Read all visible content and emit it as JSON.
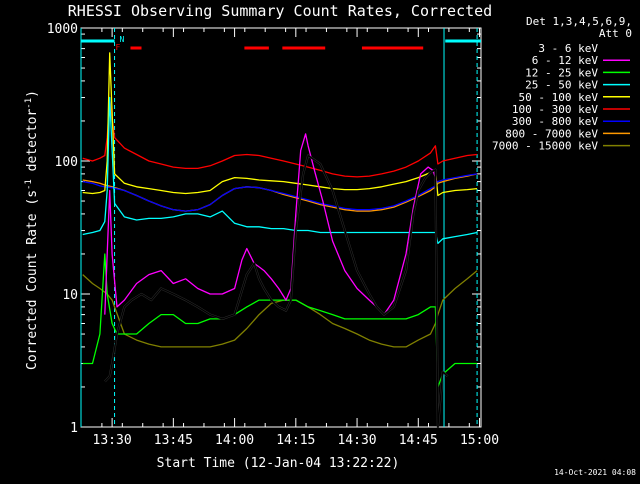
{
  "chart_data": {
    "type": "line",
    "title": "RHESSI Observing Summary Count Rates, Corrected",
    "xlabel": "Start Time (12-Jan-04 13:22:22)",
    "ylabel": "Corrected Count Rate (s⁻¹ detector⁻¹)",
    "ylabel_main": "Corrected Count Rate (s",
    "ylabel_sup1": "-1",
    "ylabel_mid": " detector",
    "ylabel_sup2": "-1",
    "ylabel_end": ")",
    "xlim": [
      13.373,
      15.006
    ],
    "ylim": [
      1,
      1000
    ],
    "yscale": "log",
    "x_ticks": [
      {
        "value": 13.5,
        "label": "13:30"
      },
      {
        "value": 13.75,
        "label": "13:45"
      },
      {
        "value": 14.0,
        "label": "14:00"
      },
      {
        "value": 14.25,
        "label": "14:15"
      },
      {
        "value": 14.5,
        "label": "14:30"
      },
      {
        "value": 14.75,
        "label": "14:45"
      },
      {
        "value": 15.0,
        "label": "15:00"
      }
    ],
    "y_ticks": [
      {
        "value": 1,
        "label": "1"
      },
      {
        "value": 10,
        "label": "10"
      },
      {
        "value": 100,
        "label": "100"
      },
      {
        "value": 1000,
        "label": "1000"
      }
    ],
    "legend_header": [
      "Det 1,3,4,5,6,9,",
      "Att 0"
    ],
    "legend_position": "right",
    "series": [
      {
        "name": "3 - 6 keV",
        "color": "#000000",
        "x": [
          13.47,
          13.49,
          13.5,
          13.52,
          13.55,
          13.58,
          13.62,
          13.66,
          13.7,
          13.75,
          13.8,
          13.85,
          13.9,
          13.95,
          14.0,
          14.05,
          14.08,
          14.1,
          14.12,
          14.15,
          14.18,
          14.21,
          14.23,
          14.25,
          14.28,
          14.3,
          14.35,
          14.4,
          14.45,
          14.5,
          14.55,
          14.58,
          14.61,
          14.65,
          14.7,
          14.73,
          14.75,
          14.78,
          14.8,
          14.82,
          14.83,
          14.85,
          14.87
        ],
        "y": [
          2.2,
          2.4,
          3,
          5,
          8,
          9,
          10,
          9,
          11,
          10,
          9,
          8,
          7,
          6.5,
          7,
          14,
          17,
          13,
          11,
          9,
          8,
          7.5,
          9,
          30,
          80,
          110,
          95,
          60,
          30,
          15,
          10,
          8,
          7,
          8,
          15,
          40,
          60,
          75,
          82,
          86,
          1,
          2.6,
          2.4
        ]
      },
      {
        "name": "6 - 12 keV",
        "color": "#ff00ff",
        "x": [
          13.47,
          13.49,
          13.5,
          13.52,
          13.55,
          13.6,
          13.65,
          13.7,
          13.75,
          13.8,
          13.85,
          13.9,
          13.95,
          14.0,
          14.03,
          14.05,
          14.08,
          14.1,
          14.12,
          14.15,
          14.18,
          14.21,
          14.23,
          14.25,
          14.27,
          14.29,
          14.3,
          14.33,
          14.36,
          14.4,
          14.45,
          14.5,
          14.55,
          14.58,
          14.61,
          14.65,
          14.7,
          14.73,
          14.76,
          14.79,
          14.81,
          14.825
        ],
        "y": [
          7,
          60,
          20,
          8,
          9,
          12,
          14,
          15,
          12,
          13,
          11,
          10,
          10,
          11,
          18,
          22,
          17,
          16,
          15,
          13,
          11,
          9,
          11,
          40,
          120,
          160,
          130,
          80,
          50,
          25,
          15,
          11,
          9,
          8,
          7,
          9,
          20,
          45,
          80,
          90,
          85,
          70
        ]
      },
      {
        "name": "12 - 25 keV",
        "color": "#00ff00",
        "x": [
          13.38,
          13.42,
          13.45,
          13.47,
          13.48,
          13.5,
          13.52,
          13.55,
          13.6,
          13.65,
          13.7,
          13.75,
          13.8,
          13.85,
          13.9,
          13.95,
          14.0,
          14.05,
          14.1,
          14.15,
          14.2,
          14.25,
          14.3,
          14.35,
          14.4,
          14.45,
          14.5,
          14.55,
          14.6,
          14.65,
          14.7,
          14.75,
          14.8,
          14.82,
          14.83,
          14.85,
          14.9,
          14.95,
          14.99
        ],
        "y": [
          3,
          3,
          5,
          20,
          10,
          6,
          5,
          5,
          5,
          6,
          7,
          7,
          6,
          6,
          6.5,
          6.5,
          7,
          8,
          9,
          9,
          9,
          9,
          8,
          7.5,
          7,
          6.5,
          6.5,
          6.5,
          6.5,
          6.5,
          6.5,
          7,
          8,
          8,
          2,
          2.5,
          3,
          3,
          3
        ]
      },
      {
        "name": "25 - 50 keV",
        "color": "#00ffff",
        "x": [
          13.38,
          13.42,
          13.45,
          13.47,
          13.48,
          13.49,
          13.51,
          13.55,
          13.6,
          13.65,
          13.7,
          13.75,
          13.8,
          13.85,
          13.9,
          13.95,
          14.0,
          14.05,
          14.1,
          14.15,
          14.2,
          14.25,
          14.3,
          14.35,
          14.4,
          14.45,
          14.5,
          14.55,
          14.6,
          14.65,
          14.7,
          14.75,
          14.8,
          14.82,
          14.83,
          14.85,
          14.9,
          14.95,
          14.99
        ],
        "y": [
          28,
          29,
          30,
          35,
          60,
          300,
          48,
          38,
          36,
          37,
          37,
          38,
          40,
          40,
          38,
          42,
          34,
          32,
          32,
          31,
          31,
          30,
          30,
          29,
          29,
          29,
          29,
          29,
          29,
          29,
          29,
          29,
          29,
          29,
          24,
          26,
          27,
          28,
          29
        ]
      },
      {
        "name": "50 - 100 keV",
        "color": "#ffff00",
        "x": [
          13.38,
          13.42,
          13.45,
          13.47,
          13.48,
          13.49,
          13.51,
          13.55,
          13.6,
          13.65,
          13.7,
          13.75,
          13.8,
          13.85,
          13.9,
          13.95,
          14.0,
          14.05,
          14.1,
          14.15,
          14.2,
          14.25,
          14.3,
          14.35,
          14.4,
          14.45,
          14.5,
          14.55,
          14.6,
          14.65,
          14.7,
          14.75,
          14.8,
          14.82,
          14.83,
          14.85,
          14.9,
          14.95,
          14.99
        ],
        "y": [
          58,
          57,
          58,
          60,
          100,
          650,
          80,
          68,
          64,
          62,
          60,
          58,
          57,
          58,
          60,
          70,
          75,
          74,
          72,
          71,
          70,
          68,
          66,
          64,
          62,
          61,
          61,
          62,
          64,
          67,
          70,
          75,
          82,
          85,
          55,
          58,
          60,
          61,
          62
        ]
      },
      {
        "name": "100 - 300 keV",
        "color": "#ff0000",
        "x": [
          13.38,
          13.42,
          13.45,
          13.47,
          13.48,
          13.49,
          13.51,
          13.55,
          13.6,
          13.65,
          13.7,
          13.75,
          13.8,
          13.85,
          13.9,
          13.95,
          14.0,
          14.05,
          14.1,
          14.15,
          14.2,
          14.25,
          14.3,
          14.35,
          14.4,
          14.45,
          14.5,
          14.55,
          14.6,
          14.65,
          14.7,
          14.75,
          14.8,
          14.82,
          14.83,
          14.85,
          14.9,
          14.95,
          14.99
        ],
        "y": [
          105,
          100,
          105,
          110,
          150,
          290,
          150,
          125,
          112,
          100,
          95,
          90,
          88,
          88,
          92,
          100,
          110,
          112,
          110,
          105,
          100,
          95,
          90,
          85,
          80,
          77,
          76,
          77,
          80,
          84,
          90,
          100,
          115,
          130,
          95,
          100,
          105,
          110,
          112
        ]
      },
      {
        "name": "300 - 800 keV",
        "color": "#0000ff",
        "x": [
          13.38,
          13.42,
          13.45,
          13.47,
          13.5,
          13.55,
          13.6,
          13.65,
          13.7,
          13.75,
          13.8,
          13.85,
          13.9,
          13.95,
          14.0,
          14.05,
          14.1,
          14.15,
          14.2,
          14.25,
          14.3,
          14.35,
          14.4,
          14.45,
          14.5,
          14.55,
          14.6,
          14.65,
          14.7,
          14.75,
          14.8,
          14.82,
          14.83,
          14.85,
          14.9,
          14.95,
          14.99
        ],
        "y": [
          70,
          68,
          65,
          64,
          63,
          60,
          55,
          50,
          46,
          43,
          42,
          43,
          47,
          55,
          62,
          64,
          63,
          60,
          57,
          54,
          51,
          48,
          46,
          44,
          43,
          43,
          44,
          46,
          50,
          55,
          62,
          65,
          70,
          72,
          75,
          78,
          80
        ]
      },
      {
        "name": "800 - 7000 keV",
        "color": "#ff9900",
        "x": [
          13.38,
          13.42,
          13.45,
          13.47,
          13.5,
          13.55,
          13.6,
          13.65,
          13.7,
          13.75,
          13.8,
          13.85,
          13.9,
          13.95,
          14.0,
          14.05,
          14.1,
          14.15,
          14.2,
          14.25,
          14.3,
          14.35,
          14.4,
          14.45,
          14.5,
          14.55,
          14.6,
          14.65,
          14.7,
          14.75,
          14.8,
          14.82,
          14.83,
          14.85,
          14.9,
          14.95,
          14.99
        ],
        "y": [
          72,
          70,
          68,
          66,
          64,
          60,
          55,
          50,
          46,
          43,
          42,
          43,
          47,
          55,
          62,
          64,
          63,
          60,
          56,
          53,
          50,
          47,
          45,
          43,
          42,
          42,
          43,
          45,
          49,
          54,
          60,
          64,
          68,
          70,
          74,
          77,
          80
        ]
      },
      {
        "name": "7000 - 15000 keV",
        "color": "#808000",
        "x": [
          13.38,
          13.42,
          13.45,
          13.48,
          13.5,
          13.55,
          13.6,
          13.65,
          13.7,
          13.75,
          13.8,
          13.85,
          13.9,
          13.95,
          14.0,
          14.05,
          14.1,
          14.15,
          14.2,
          14.25,
          14.3,
          14.35,
          14.4,
          14.45,
          14.5,
          14.55,
          14.6,
          14.65,
          14.7,
          14.75,
          14.8,
          14.82,
          14.83,
          14.85,
          14.9,
          14.95,
          14.99
        ],
        "y": [
          14,
          12,
          11,
          10,
          9,
          5,
          4.5,
          4.2,
          4,
          4,
          4,
          4,
          4,
          4.2,
          4.5,
          5.5,
          7,
          8.5,
          9,
          9,
          8,
          7,
          6,
          5.5,
          5,
          4.5,
          4.2,
          4,
          4,
          4.5,
          5,
          6,
          7,
          9,
          11,
          13,
          15
        ]
      }
    ],
    "flags": {
      "N_label": "N",
      "F_label": "F",
      "night_color": "#00ffff",
      "flare_color": "#ff0000",
      "night_intervals": [
        [
          13.373,
          13.51
        ],
        [
          14.86,
          15.006
        ]
      ],
      "flare_intervals": [
        [
          13.575,
          13.62
        ],
        [
          14.04,
          14.14
        ],
        [
          14.195,
          14.37
        ],
        [
          14.52,
          14.77
        ]
      ],
      "vlines_solid": [
        13.373,
        14.855
      ],
      "vlines_dashed": [
        13.51,
        14.99
      ]
    }
  },
  "footer": {
    "timestamp": "14-Oct-2021 04:08"
  }
}
